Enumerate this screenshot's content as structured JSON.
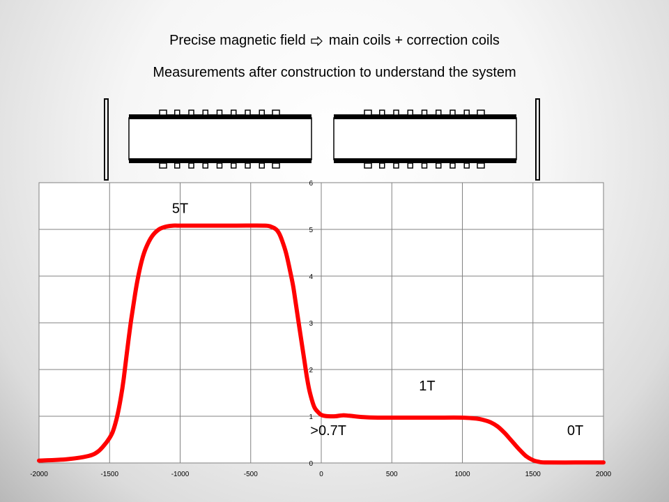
{
  "slide": {
    "title_parts": [
      "Precise magnetic field",
      "main coils + correction coils"
    ],
    "arrow_icon": "hollow-right-arrow-icon",
    "subtitle": "Measurements after construction to understand the system"
  },
  "magnet_diagram": {
    "left_module_correction_coils": 9,
    "right_module_correction_coils": 9,
    "colors": {
      "coil": "#000000",
      "bore": "#ffffff"
    }
  },
  "chart_data": {
    "type": "line",
    "title": "",
    "xlabel": "",
    "ylabel": "",
    "xlim": [
      -2000,
      2000
    ],
    "ylim": [
      0,
      6
    ],
    "x_ticks": [
      "-2000",
      "-1500",
      "-1000",
      "-500",
      "0",
      "500",
      "1000",
      "1500",
      "2000"
    ],
    "y_ticks": [
      "0",
      "1",
      "2",
      "3",
      "4",
      "5",
      "6"
    ],
    "grid": true,
    "series": [
      {
        "color": "#ff0000",
        "x": [
          -2000,
          -1800,
          -1650,
          -1580,
          -1520,
          -1480,
          -1450,
          -1420,
          -1400,
          -1380,
          -1350,
          -1320,
          -1300,
          -1270,
          -1240,
          -1200,
          -1150,
          -1100,
          -1050,
          -1000,
          -800,
          -600,
          -400,
          -350,
          -320,
          -300,
          -280,
          -250,
          -220,
          -200,
          -180,
          -150,
          -120,
          -100,
          -80,
          -50,
          -20,
          0,
          20,
          50,
          100,
          150,
          200,
          300,
          400,
          600,
          800,
          1000,
          1100,
          1150,
          1200,
          1250,
          1300,
          1350,
          1400,
          1450,
          1500,
          1550,
          1600,
          1800,
          2000
        ],
        "y": [
          0.05,
          0.08,
          0.15,
          0.25,
          0.45,
          0.65,
          0.95,
          1.4,
          1.8,
          2.3,
          3.0,
          3.6,
          3.95,
          4.35,
          4.62,
          4.85,
          5.0,
          5.06,
          5.08,
          5.08,
          5.08,
          5.08,
          5.08,
          5.05,
          5.0,
          4.92,
          4.78,
          4.5,
          4.1,
          3.8,
          3.4,
          2.8,
          2.2,
          1.8,
          1.5,
          1.2,
          1.08,
          1.03,
          1.01,
          1.0,
          1.0,
          1.02,
          1.01,
          0.98,
          0.97,
          0.97,
          0.97,
          0.97,
          0.95,
          0.92,
          0.87,
          0.78,
          0.64,
          0.47,
          0.3,
          0.15,
          0.06,
          0.02,
          0.01,
          0.01,
          0.01
        ]
      }
    ],
    "annotations": [
      {
        "text": "5T",
        "x": -1000,
        "y": 5.35
      },
      {
        "text": "1T",
        "x": 750,
        "y": 1.55
      },
      {
        "text": ">0.7T",
        "x": 50,
        "y": 0.6
      },
      {
        "text": "0T",
        "x": 1800,
        "y": 0.6
      }
    ]
  }
}
